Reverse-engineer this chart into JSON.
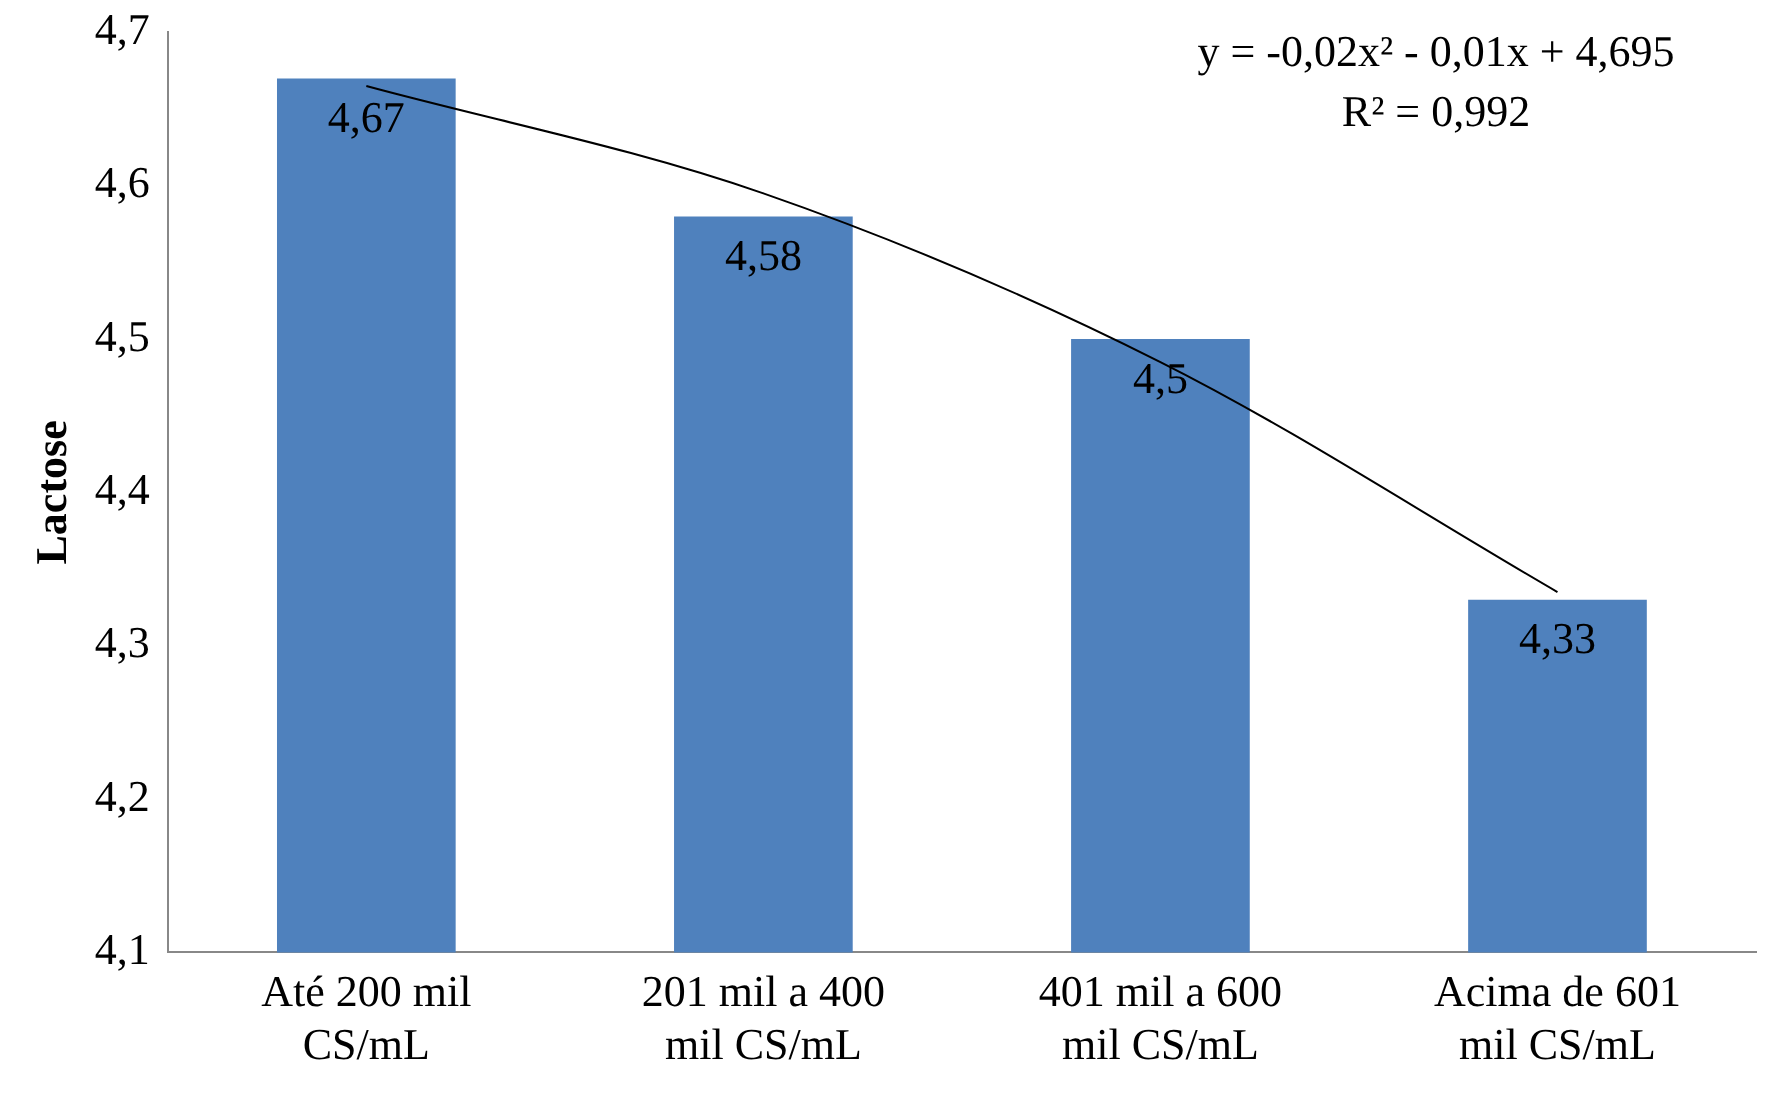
{
  "chart_data": {
    "type": "bar",
    "ylabel": "Lactose",
    "categories": [
      "Até 200 mil CS/mL",
      "201 mil a 400 mil CS/mL",
      "401 mil a 600 mil CS/mL",
      "Acima de 601 mil CS/mL"
    ],
    "values": [
      4.67,
      4.58,
      4.5,
      4.33
    ],
    "color": "#4f81bd",
    "value_labels": [
      "4,67",
      "4,58",
      "4,5",
      "4,33"
    ],
    "series": [
      {
        "type": "line",
        "color": "#000000",
        "values": [
          4.665,
          4.595,
          4.485,
          4.335
        ]
      }
    ],
    "ylim": [
      4.1,
      4.7
    ],
    "yticks": [
      {
        "value": 4.1,
        "label": "4,1"
      },
      {
        "value": 4.2,
        "label": "4,2"
      },
      {
        "value": 4.3,
        "label": "4,3"
      },
      {
        "value": 4.4,
        "label": "4,4"
      },
      {
        "value": 4.5,
        "label": "4,5"
      },
      {
        "value": 4.6,
        "label": "4,6"
      },
      {
        "value": 4.7,
        "label": "4,7"
      }
    ],
    "annotations": [
      "y = -0,02x² - 0,01x + 4,695",
      "R² = 0,992"
    ],
    "grid": false,
    "legend": false,
    "marker": "none",
    "line_style": "solid"
  }
}
